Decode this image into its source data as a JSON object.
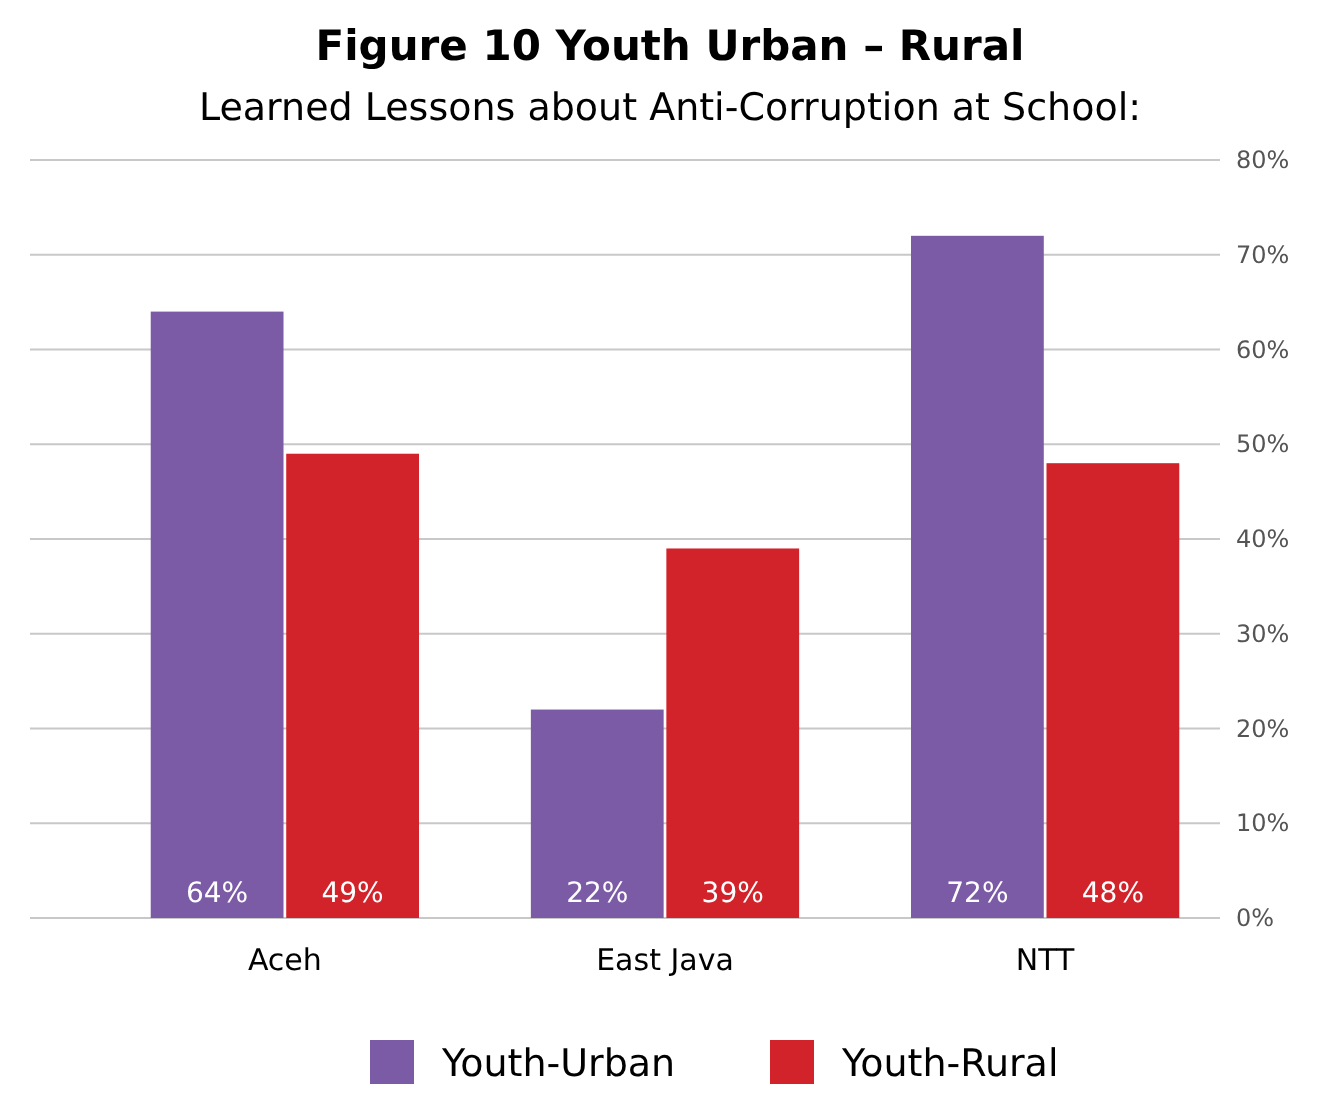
{
  "chart_data": {
    "type": "bar",
    "title": "Figure 10 Youth Urban – Rural",
    "subtitle": "Learned Lessons about Anti-Corruption at School:",
    "categories": [
      "Aceh",
      "East Java",
      "NTT"
    ],
    "series": [
      {
        "name": "Youth-Urban",
        "color": "#7b5ba6",
        "values": [
          64,
          22,
          72
        ],
        "value_labels": [
          "64%",
          "22%",
          "72%"
        ]
      },
      {
        "name": "Youth-Rural",
        "color": "#d2232a",
        "values": [
          49,
          39,
          48
        ],
        "value_labels": [
          "49%",
          "39%",
          "48%"
        ]
      }
    ],
    "ylim": [
      0,
      80
    ],
    "yticks": [
      {
        "value": 0,
        "label": "0%"
      },
      {
        "value": 10,
        "label": "10%"
      },
      {
        "value": 20,
        "label": "20%"
      },
      {
        "value": 30,
        "label": "30%"
      },
      {
        "value": 40,
        "label": "40%"
      },
      {
        "value": 50,
        "label": "50%"
      },
      {
        "value": 60,
        "label": "60%"
      },
      {
        "value": 70,
        "label": "70%"
      },
      {
        "value": 80,
        "label": "80%"
      }
    ],
    "grid": true,
    "legend": "bottom"
  }
}
